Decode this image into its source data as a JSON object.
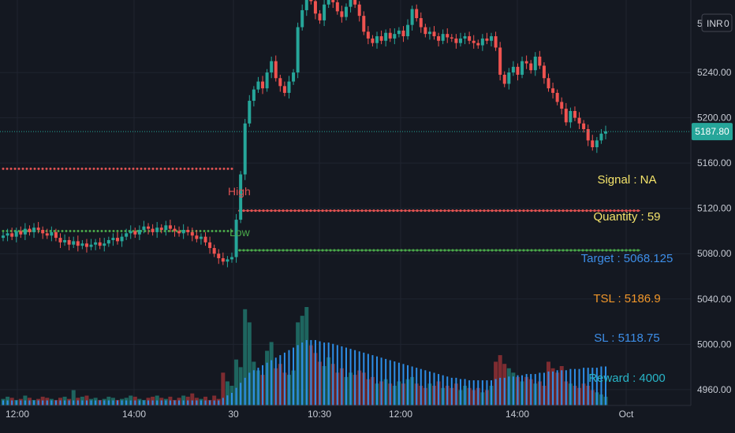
{
  "currency": "INR",
  "top_price_clip": "5",
  "last_price": "5187.80",
  "level_labels": {
    "high": "High",
    "low": "Low"
  },
  "info_panel": [
    {
      "text": "Signal : NA",
      "color": "#f4e36a"
    },
    {
      "text": "Quantity : 59",
      "color": "#f4e36a"
    },
    {
      "text": "Target : 5068.125",
      "color": "#3d8ee8"
    },
    {
      "text": "TSL : 5186.9",
      "color": "#f0962a"
    },
    {
      "text": "SL : 5118.75",
      "color": "#3d8ee8"
    },
    {
      "text": "Reward : 4000",
      "color": "#28b5c8"
    }
  ],
  "chart_data": {
    "type": "candlestick",
    "y_axis_ticks": [
      "5240.00",
      "5200.00",
      "5160.00",
      "5120.00",
      "5080.00",
      "5040.00",
      "5000.00",
      "4960.00"
    ],
    "x_axis_ticks": [
      "12:00",
      "14:00",
      "30",
      "10:30",
      "12:00",
      "14:00",
      "Oct"
    ],
    "ylim": [
      4946,
      5304
    ],
    "colors": {
      "up": "#26a69a",
      "down": "#ef5350",
      "volume_avg": "#2d8ee8",
      "grid": "#1f2430"
    },
    "close_series": [
      5096,
      5098,
      5095,
      5100,
      5097,
      5102,
      5099,
      5103,
      5101,
      5098,
      5096,
      5099,
      5094,
      5090,
      5092,
      5088,
      5091,
      5087,
      5089,
      5086,
      5088,
      5090,
      5087,
      5089,
      5092,
      5094,
      5091,
      5095,
      5098,
      5100,
      5097,
      5101,
      5104,
      5102,
      5099,
      5103,
      5101,
      5105,
      5102,
      5100,
      5098,
      5101,
      5099,
      5096,
      5093,
      5095,
      5090,
      5085,
      5080,
      5076,
      5073,
      5075,
      5077,
      5110,
      5150,
      5195,
      5215,
      5225,
      5232,
      5226,
      5240,
      5250,
      5235,
      5228,
      5222,
      5232,
      5240,
      5280,
      5295,
      5310,
      5303,
      5292,
      5286,
      5300,
      5313,
      5302,
      5294,
      5289,
      5298,
      5306,
      5300,
      5290,
      5276,
      5270,
      5266,
      5272,
      5268,
      5275,
      5270,
      5274,
      5277,
      5272,
      5282,
      5296,
      5288,
      5280,
      5274,
      5276,
      5272,
      5268,
      5274,
      5271,
      5270,
      5266,
      5270,
      5272,
      5268,
      5266,
      5264,
      5270,
      5268,
      5272,
      5262,
      5238,
      5230,
      5240,
      5245,
      5238,
      5250,
      5248,
      5242,
      5254,
      5246,
      5235,
      5226,
      5222,
      5214,
      5208,
      5196,
      5206,
      5200,
      5195,
      5190,
      5180,
      5174,
      5180,
      5186,
      5188
    ],
    "volume_series": [
      6,
      8,
      7,
      5,
      6,
      9,
      7,
      5,
      6,
      8,
      7,
      6,
      5,
      7,
      8,
      6,
      14,
      7,
      8,
      9,
      6,
      7,
      5,
      6,
      8,
      7,
      5,
      6,
      7,
      9,
      8,
      6,
      5,
      7,
      8,
      9,
      7,
      6,
      8,
      5,
      7,
      9,
      8,
      11,
      7,
      6,
      8,
      5,
      9,
      6,
      30,
      22,
      18,
      42,
      35,
      88,
      76,
      40,
      32,
      28,
      50,
      58,
      34,
      38,
      30,
      28,
      32,
      76,
      82,
      90,
      55,
      48,
      40,
      36,
      44,
      38,
      30,
      34,
      26,
      30,
      28,
      32,
      30,
      24,
      26,
      20,
      22,
      24,
      20,
      18,
      22,
      20,
      24,
      26,
      20,
      18,
      16,
      20,
      18,
      22,
      16,
      18,
      16,
      20,
      14,
      18,
      16,
      14,
      16,
      12,
      14,
      18,
      40,
      46,
      38,
      34,
      30,
      26,
      22,
      26,
      24,
      20,
      22,
      18,
      40,
      34,
      30,
      36,
      22,
      20,
      18,
      16,
      20,
      18,
      14,
      12,
      10,
      8
    ],
    "volume_avg_series": [
      4,
      4,
      4,
      4,
      4,
      4,
      4,
      4,
      4,
      4,
      4,
      4,
      4,
      4,
      4,
      4,
      4,
      4,
      4,
      4,
      4,
      4,
      4,
      4,
      4,
      4,
      4,
      4,
      4,
      4,
      4,
      4,
      4,
      4,
      4,
      4,
      4,
      4,
      4,
      4,
      4,
      4,
      4,
      4,
      4,
      4,
      4,
      4,
      4,
      4,
      6,
      8,
      10,
      14,
      18,
      22,
      26,
      28,
      30,
      32,
      34,
      36,
      38,
      40,
      42,
      44,
      46,
      48,
      50,
      52,
      52,
      52,
      51,
      50,
      50,
      49,
      48,
      47,
      46,
      45,
      44,
      43,
      42,
      41,
      40,
      39,
      38,
      37,
      36,
      35,
      34,
      33,
      32,
      31,
      30,
      29,
      28,
      27,
      26,
      25,
      24,
      23,
      22,
      22,
      21,
      21,
      20,
      20,
      20,
      20,
      20,
      20,
      21,
      22,
      22,
      23,
      23,
      24,
      24,
      25,
      25,
      25,
      26,
      26,
      27,
      27,
      28,
      28,
      28,
      29,
      29,
      29,
      30,
      30,
      30,
      30,
      31,
      31
    ],
    "high_levels": [
      {
        "y": 5155,
        "color": "#e05252"
      },
      {
        "y": 5118,
        "color": "#e05252"
      }
    ],
    "low_levels": [
      {
        "y": 5100,
        "color": "#4aa84a"
      },
      {
        "y": 5083,
        "color": "#4aa84a"
      }
    ],
    "last_price_value": 5187.8
  }
}
